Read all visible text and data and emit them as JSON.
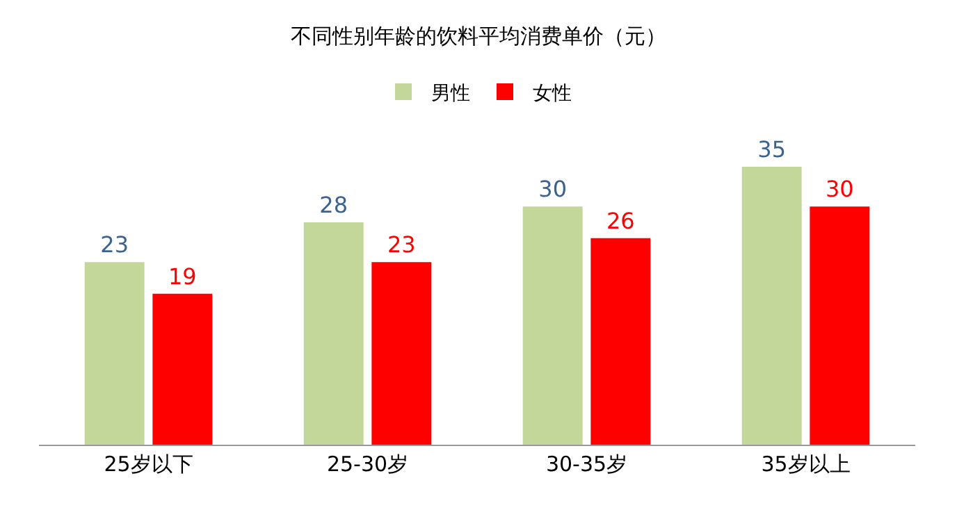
{
  "chart_data": {
    "type": "bar",
    "title": "不同性别年龄的饮料平均消费单价（元）",
    "categories": [
      "25岁以下",
      "25-30岁",
      "30-35岁",
      "35岁以上"
    ],
    "series": [
      {
        "name": "男性",
        "color": "#c4d79b",
        "values": [
          23,
          28,
          30,
          35
        ]
      },
      {
        "name": "女性",
        "color": "#ff0000",
        "values": [
          19,
          23,
          26,
          30
        ]
      }
    ],
    "data_labels": true,
    "legend": "top",
    "grid": false,
    "tick_labels": "x"
  }
}
